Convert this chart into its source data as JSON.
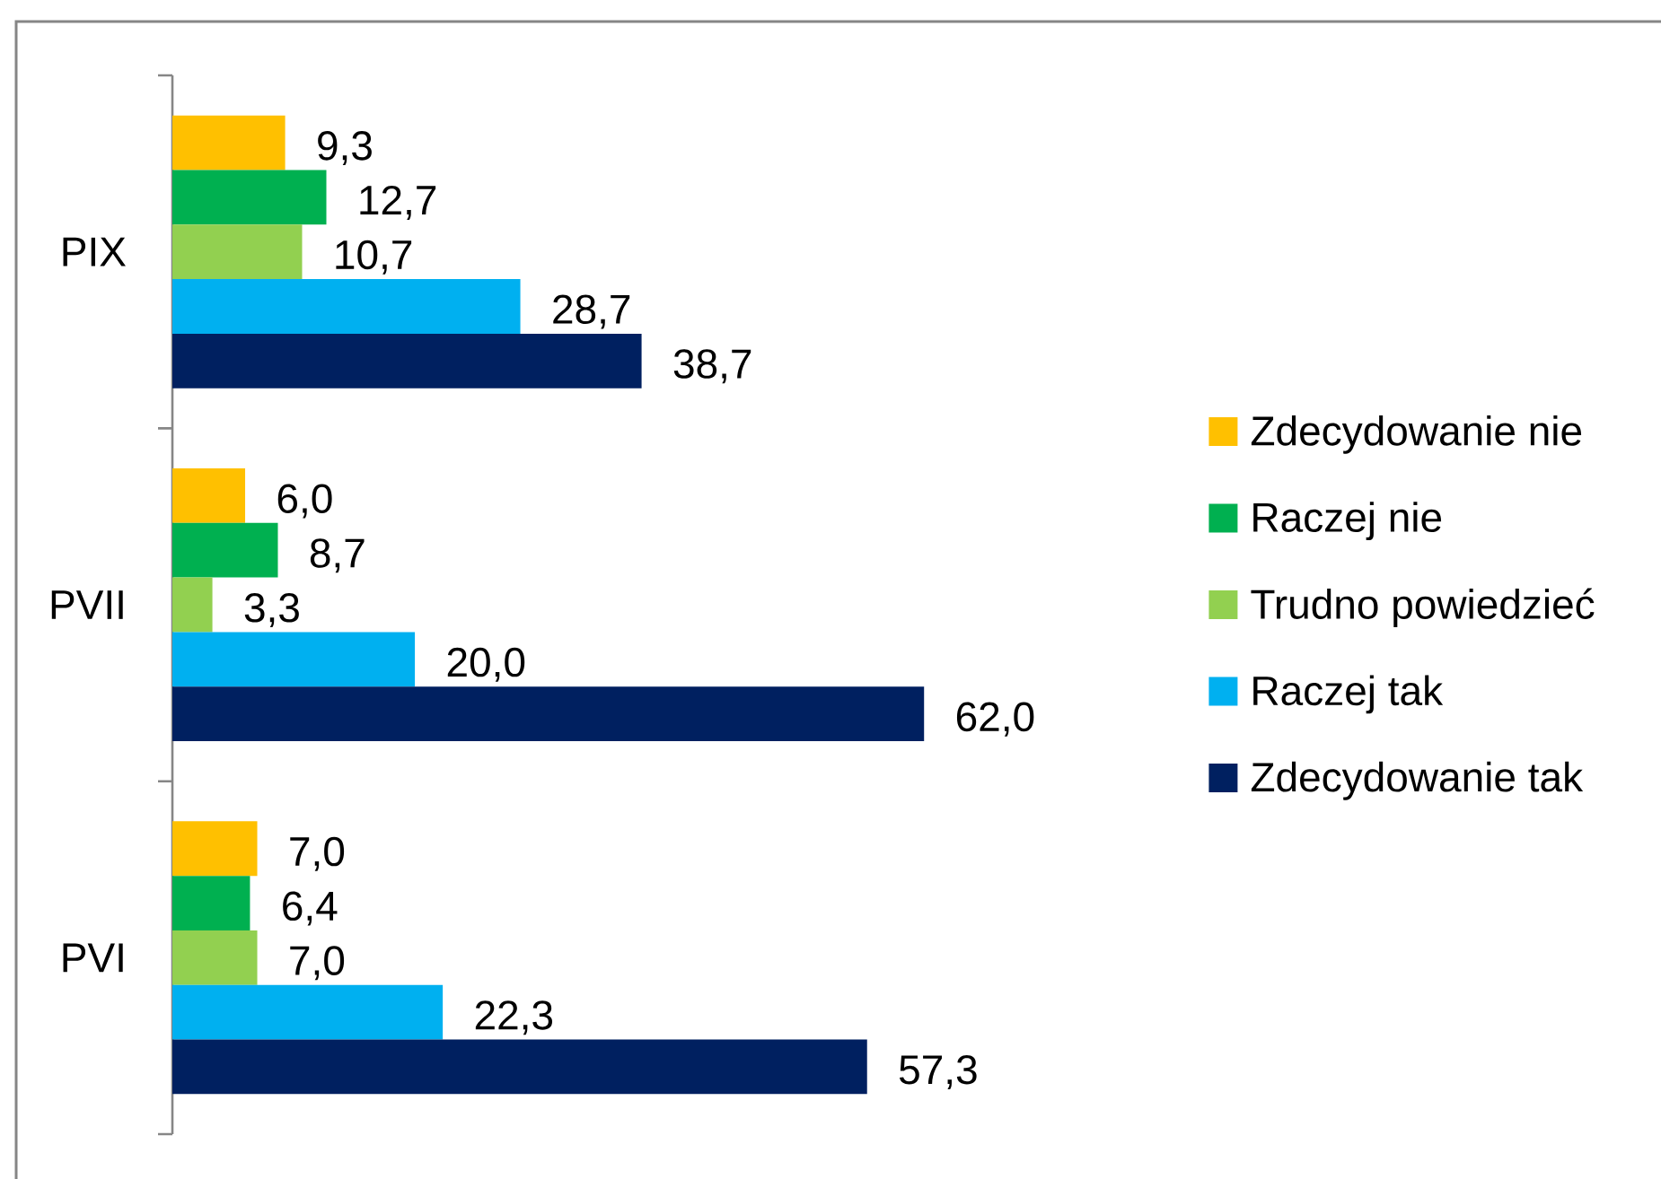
{
  "chart_data": {
    "type": "bar",
    "orientation": "horizontal",
    "categories": [
      "PIX",
      "PVII",
      "PVI"
    ],
    "series": [
      {
        "name": "Zdecydowanie nie",
        "color": "#ffc000",
        "values": [
          9.3,
          6.0,
          7.0
        ],
        "value_labels": [
          "9,3",
          "6,0",
          "7,0"
        ]
      },
      {
        "name": "Raczej nie",
        "color": "#00b050",
        "values": [
          12.7,
          8.7,
          6.4
        ],
        "value_labels": [
          "12,7",
          "8,7",
          "6,4"
        ]
      },
      {
        "name": "Trudno powiedzieć",
        "color": "#92d050",
        "values": [
          10.7,
          3.3,
          7.0
        ],
        "value_labels": [
          "10,7",
          "3,3",
          "7,0"
        ]
      },
      {
        "name": "Raczej tak",
        "color": "#00b0f0",
        "values": [
          28.7,
          20.0,
          22.3
        ],
        "value_labels": [
          "28,7",
          "20,0",
          "22,3"
        ]
      },
      {
        "name": "Zdecydowanie tak",
        "color": "#002060",
        "values": [
          38.7,
          62.0,
          57.3
        ],
        "value_labels": [
          "38,7",
          "62,0",
          "57,3"
        ]
      }
    ],
    "legend": "right"
  }
}
